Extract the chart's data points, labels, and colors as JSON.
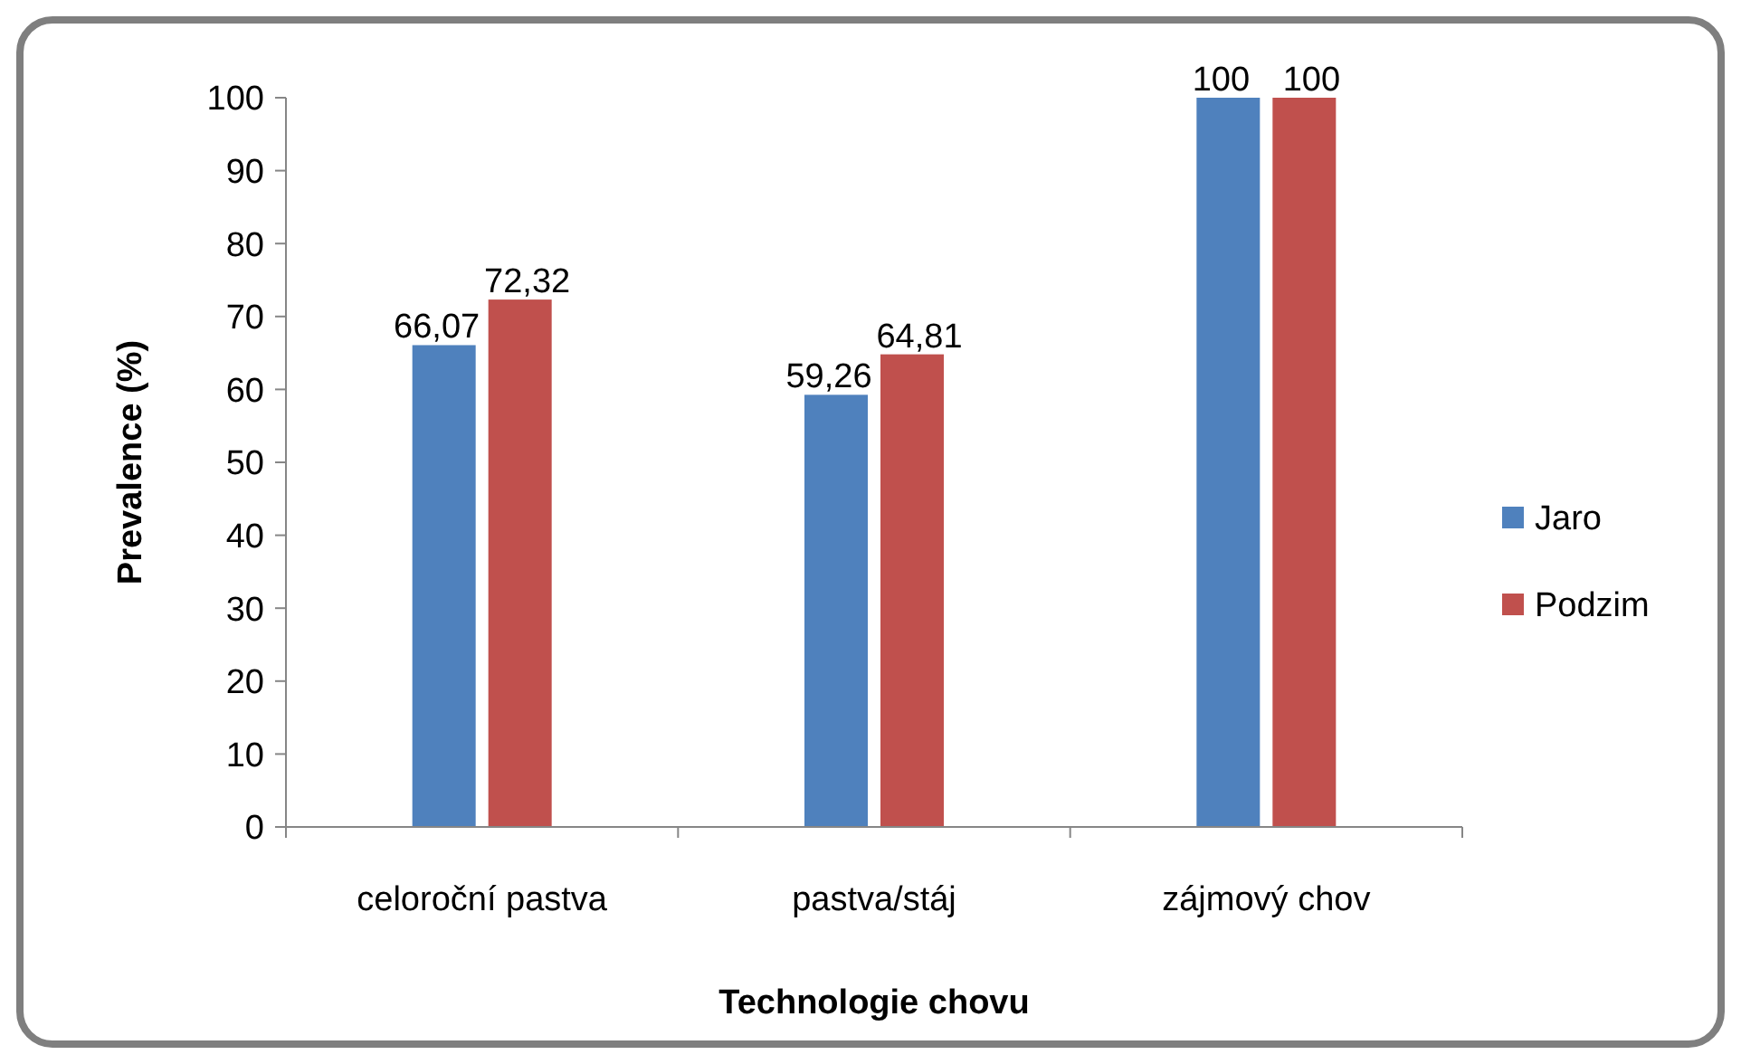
{
  "chart_data": {
    "type": "bar",
    "xlabel": "Technologie chovu",
    "ylabel": "Prevalence (%)",
    "categories": [
      "celoroční pastva",
      "pastva/stáj",
      "zájmový chov"
    ],
    "series": [
      {
        "name": "Jaro",
        "color": "#4f81bd",
        "values": [
          66.07,
          59.26,
          100
        ],
        "value_labels": [
          "66,07",
          "59,26",
          "100"
        ]
      },
      {
        "name": "Podzim",
        "color": "#c0504d",
        "values": [
          72.32,
          64.81,
          100
        ],
        "value_labels": [
          "72,32",
          "64,81",
          "100"
        ]
      }
    ],
    "ylim": [
      0,
      100
    ],
    "yticks": [
      0,
      10,
      20,
      30,
      40,
      50,
      60,
      70,
      80,
      90,
      100
    ],
    "grid": false,
    "legend": "right"
  }
}
